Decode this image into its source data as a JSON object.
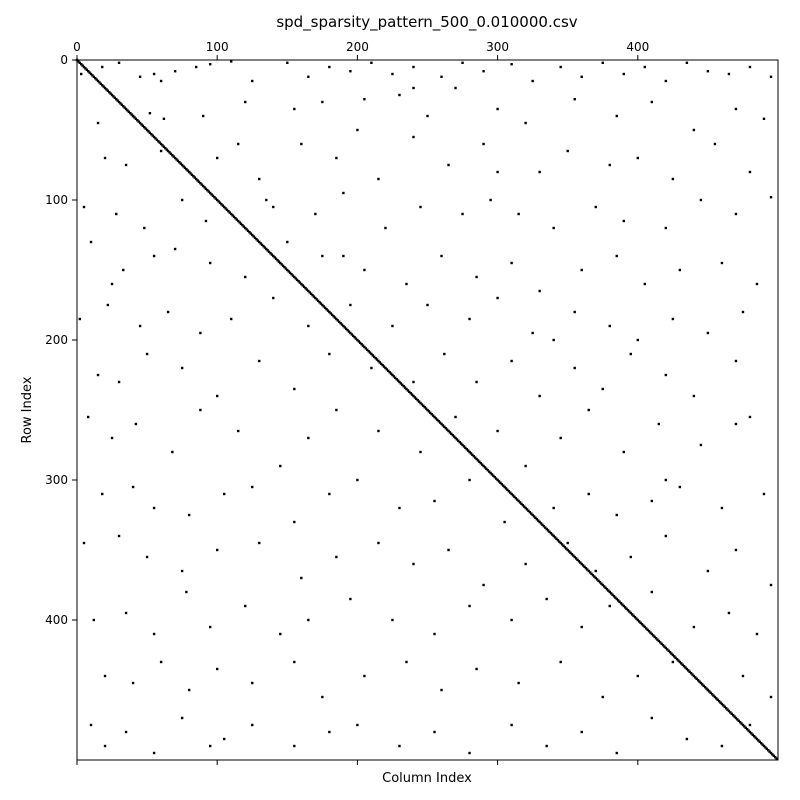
{
  "chart_data": {
    "type": "scatter",
    "title": "spd_sparsity_pattern_500_0.010000.csv",
    "xlabel": "Column Index",
    "ylabel": "Row Index",
    "xlim": [
      0,
      500
    ],
    "ylim": [
      500,
      0
    ],
    "x_ticks": [
      0,
      100,
      200,
      300,
      400
    ],
    "y_ticks": [
      0,
      100,
      200,
      300,
      400
    ],
    "x_tick_position": "top",
    "grid": false,
    "legend": "none",
    "marker_color": "#000000",
    "diagonal": {
      "start": 0,
      "end": 499
    },
    "points": [
      [
        3,
        10
      ],
      [
        18,
        5
      ],
      [
        30,
        2
      ],
      [
        45,
        12
      ],
      [
        55,
        10
      ],
      [
        70,
        8
      ],
      [
        85,
        5
      ],
      [
        95,
        3
      ],
      [
        110,
        1
      ],
      [
        125,
        15
      ],
      [
        150,
        2
      ],
      [
        165,
        12
      ],
      [
        180,
        5
      ],
      [
        195,
        8
      ],
      [
        210,
        2
      ],
      [
        225,
        10
      ],
      [
        240,
        5
      ],
      [
        260,
        12
      ],
      [
        275,
        2
      ],
      [
        290,
        8
      ],
      [
        310,
        3
      ],
      [
        325,
        15
      ],
      [
        345,
        5
      ],
      [
        360,
        12
      ],
      [
        375,
        2
      ],
      [
        390,
        10
      ],
      [
        405,
        5
      ],
      [
        420,
        15
      ],
      [
        435,
        2
      ],
      [
        450,
        8
      ],
      [
        465,
        10
      ],
      [
        480,
        5
      ],
      [
        495,
        12
      ],
      [
        15,
        45
      ],
      [
        40,
        40
      ],
      [
        52,
        38
      ],
      [
        62,
        42
      ],
      [
        90,
        40
      ],
      [
        120,
        30
      ],
      [
        155,
        35
      ],
      [
        175,
        30
      ],
      [
        205,
        28
      ],
      [
        230,
        25
      ],
      [
        250,
        40
      ],
      [
        270,
        20
      ],
      [
        300,
        35
      ],
      [
        320,
        45
      ],
      [
        355,
        28
      ],
      [
        385,
        40
      ],
      [
        410,
        30
      ],
      [
        440,
        50
      ],
      [
        470,
        35
      ],
      [
        490,
        42
      ],
      [
        20,
        70
      ],
      [
        35,
        75
      ],
      [
        60,
        65
      ],
      [
        80,
        80
      ],
      [
        100,
        70
      ],
      [
        130,
        85
      ],
      [
        160,
        60
      ],
      [
        185,
        70
      ],
      [
        200,
        50
      ],
      [
        215,
        85
      ],
      [
        240,
        55
      ],
      [
        265,
        75
      ],
      [
        290,
        60
      ],
      [
        330,
        80
      ],
      [
        350,
        65
      ],
      [
        380,
        75
      ],
      [
        400,
        70
      ],
      [
        425,
        85
      ],
      [
        455,
        60
      ],
      [
        480,
        80
      ],
      [
        5,
        105
      ],
      [
        28,
        110
      ],
      [
        48,
        120
      ],
      [
        75,
        100
      ],
      [
        92,
        115
      ],
      [
        140,
        105
      ],
      [
        170,
        110
      ],
      [
        190,
        95
      ],
      [
        220,
        120
      ],
      [
        245,
        105
      ],
      [
        275,
        110
      ],
      [
        295,
        100
      ],
      [
        315,
        110
      ],
      [
        340,
        120
      ],
      [
        370,
        105
      ],
      [
        390,
        115
      ],
      [
        420,
        120
      ],
      [
        445,
        100
      ],
      [
        470,
        110
      ],
      [
        495,
        98
      ],
      [
        10,
        130
      ],
      [
        33,
        150
      ],
      [
        55,
        140
      ],
      [
        70,
        135
      ],
      [
        95,
        145
      ],
      [
        120,
        155
      ],
      [
        150,
        130
      ],
      [
        175,
        140
      ],
      [
        205,
        150
      ],
      [
        235,
        160
      ],
      [
        260,
        140
      ],
      [
        285,
        155
      ],
      [
        310,
        145
      ],
      [
        330,
        165
      ],
      [
        360,
        150
      ],
      [
        385,
        140
      ],
      [
        405,
        160
      ],
      [
        430,
        150
      ],
      [
        460,
        145
      ],
      [
        485,
        160
      ],
      [
        2,
        185
      ],
      [
        22,
        175
      ],
      [
        45,
        190
      ],
      [
        65,
        180
      ],
      [
        88,
        195
      ],
      [
        110,
        185
      ],
      [
        140,
        170
      ],
      [
        165,
        190
      ],
      [
        195,
        175
      ],
      [
        225,
        190
      ],
      [
        250,
        175
      ],
      [
        280,
        185
      ],
      [
        300,
        170
      ],
      [
        325,
        195
      ],
      [
        355,
        180
      ],
      [
        380,
        190
      ],
      [
        400,
        200
      ],
      [
        425,
        185
      ],
      [
        450,
        195
      ],
      [
        475,
        180
      ],
      [
        15,
        225
      ],
      [
        30,
        230
      ],
      [
        50,
        210
      ],
      [
        75,
        220
      ],
      [
        100,
        240
      ],
      [
        130,
        215
      ],
      [
        155,
        235
      ],
      [
        180,
        210
      ],
      [
        210,
        220
      ],
      [
        240,
        230
      ],
      [
        262,
        210
      ],
      [
        285,
        230
      ],
      [
        310,
        215
      ],
      [
        330,
        240
      ],
      [
        355,
        220
      ],
      [
        375,
        235
      ],
      [
        395,
        210
      ],
      [
        420,
        225
      ],
      [
        440,
        240
      ],
      [
        470,
        215
      ],
      [
        8,
        255
      ],
      [
        25,
        270
      ],
      [
        42,
        260
      ],
      [
        68,
        280
      ],
      [
        88,
        250
      ],
      [
        115,
        265
      ],
      [
        145,
        290
      ],
      [
        165,
        270
      ],
      [
        185,
        250
      ],
      [
        215,
        265
      ],
      [
        245,
        280
      ],
      [
        270,
        255
      ],
      [
        300,
        265
      ],
      [
        320,
        290
      ],
      [
        345,
        270
      ],
      [
        365,
        250
      ],
      [
        390,
        280
      ],
      [
        415,
        260
      ],
      [
        445,
        275
      ],
      [
        480,
        255
      ],
      [
        18,
        310
      ],
      [
        40,
        305
      ],
      [
        55,
        320
      ],
      [
        80,
        325
      ],
      [
        105,
        310
      ],
      [
        125,
        305
      ],
      [
        155,
        330
      ],
      [
        180,
        310
      ],
      [
        200,
        300
      ],
      [
        230,
        320
      ],
      [
        255,
        315
      ],
      [
        280,
        300
      ],
      [
        305,
        330
      ],
      [
        340,
        320
      ],
      [
        365,
        310
      ],
      [
        385,
        325
      ],
      [
        410,
        315
      ],
      [
        430,
        305
      ],
      [
        460,
        320
      ],
      [
        490,
        310
      ],
      [
        5,
        345
      ],
      [
        30,
        340
      ],
      [
        50,
        355
      ],
      [
        75,
        365
      ],
      [
        100,
        350
      ],
      [
        130,
        345
      ],
      [
        160,
        370
      ],
      [
        185,
        355
      ],
      [
        215,
        345
      ],
      [
        240,
        360
      ],
      [
        265,
        350
      ],
      [
        290,
        375
      ],
      [
        320,
        360
      ],
      [
        350,
        345
      ],
      [
        370,
        365
      ],
      [
        395,
        355
      ],
      [
        420,
        340
      ],
      [
        450,
        365
      ],
      [
        470,
        350
      ],
      [
        495,
        375
      ],
      [
        12,
        400
      ],
      [
        35,
        395
      ],
      [
        55,
        410
      ],
      [
        78,
        380
      ],
      [
        95,
        405
      ],
      [
        120,
        390
      ],
      [
        145,
        410
      ],
      [
        165,
        400
      ],
      [
        195,
        385
      ],
      [
        225,
        400
      ],
      [
        255,
        410
      ],
      [
        280,
        390
      ],
      [
        310,
        400
      ],
      [
        335,
        385
      ],
      [
        360,
        405
      ],
      [
        380,
        390
      ],
      [
        410,
        380
      ],
      [
        440,
        405
      ],
      [
        465,
        395
      ],
      [
        485,
        410
      ],
      [
        20,
        440
      ],
      [
        40,
        445
      ],
      [
        60,
        430
      ],
      [
        80,
        450
      ],
      [
        100,
        435
      ],
      [
        125,
        445
      ],
      [
        155,
        430
      ],
      [
        175,
        455
      ],
      [
        205,
        440
      ],
      [
        235,
        430
      ],
      [
        260,
        450
      ],
      [
        285,
        435
      ],
      [
        315,
        445
      ],
      [
        345,
        430
      ],
      [
        375,
        455
      ],
      [
        400,
        440
      ],
      [
        425,
        430
      ],
      [
        450,
        450
      ],
      [
        475,
        440
      ],
      [
        495,
        455
      ],
      [
        10,
        475
      ],
      [
        20,
        490
      ],
      [
        35,
        480
      ],
      [
        55,
        495
      ],
      [
        75,
        470
      ],
      [
        95,
        490
      ],
      [
        105,
        485
      ],
      [
        125,
        475
      ],
      [
        155,
        490
      ],
      [
        180,
        480
      ],
      [
        200,
        475
      ],
      [
        230,
        490
      ],
      [
        255,
        480
      ],
      [
        280,
        495
      ],
      [
        310,
        475
      ],
      [
        335,
        490
      ],
      [
        360,
        480
      ],
      [
        385,
        495
      ],
      [
        410,
        470
      ],
      [
        435,
        485
      ],
      [
        460,
        490
      ],
      [
        480,
        475
      ],
      [
        25,
        160
      ],
      [
        60,
        15
      ],
      [
        115,
        60
      ],
      [
        135,
        100
      ],
      [
        190,
        140
      ],
      [
        240,
        20
      ],
      [
        300,
        80
      ],
      [
        340,
        200
      ],
      [
        420,
        300
      ],
      [
        470,
        260
      ]
    ]
  }
}
